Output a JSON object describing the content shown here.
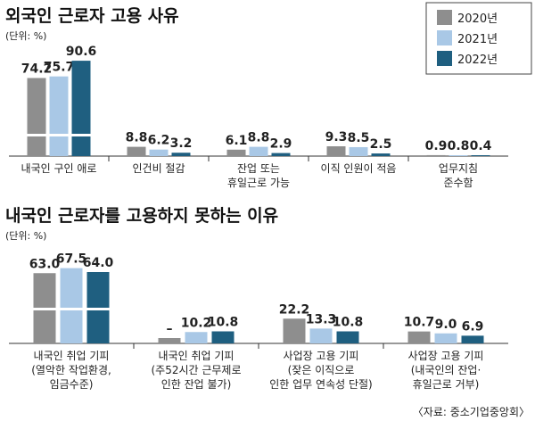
{
  "colors": {
    "2020": "#8e8e8e",
    "2021": "#a9c8e6",
    "2022": "#1f5f80"
  },
  "legend": [
    "2020년",
    "2021년",
    "2022년"
  ],
  "source": "〈자료: 중소기업중앙회〉",
  "chart_data": [
    {
      "type": "bar",
      "title": "외국인 근로자 고용 사유",
      "unit": "(단위: %)",
      "categories": [
        [
          "내국인 구인 애로"
        ],
        [
          "인건비 절감"
        ],
        [
          "잔업 또는",
          "휴일근로 가능"
        ],
        [
          "이직 인원이 적음"
        ],
        [
          "업무지침",
          "준수함"
        ]
      ],
      "series": [
        {
          "name": "2020년",
          "values": [
            74.2,
            8.8,
            6.1,
            9.3,
            0.9
          ]
        },
        {
          "name": "2021년",
          "values": [
            75.7,
            6.2,
            8.8,
            8.5,
            0.8
          ]
        },
        {
          "name": "2022년",
          "values": [
            90.6,
            3.2,
            2.9,
            2.5,
            0.4
          ]
        }
      ]
    },
    {
      "type": "bar",
      "title": "내국인 근로자를 고용하지 못하는 이유",
      "unit": "(단위: %)",
      "categories": [
        [
          "내국인 취업 기피",
          "(열악한 작업환경,",
          "임금수준)"
        ],
        [
          "내국인 취업 기피",
          "(주52시간 근무제로",
          "인한 잔업 불가)"
        ],
        [
          "사업장 고용 기피",
          "(잦은 이직으로",
          "인한 업무 연속성 단절)"
        ],
        [
          "사업장 고용 기피",
          "(내국인의 잔업·",
          "휴일근로 거부)"
        ]
      ],
      "series": [
        {
          "name": "2020년",
          "values": [
            63.0,
            null,
            22.2,
            10.7
          ],
          "labels": [
            "63.0",
            "–",
            "22.2",
            "10.7"
          ]
        },
        {
          "name": "2021년",
          "values": [
            67.5,
            10.2,
            13.3,
            9.0
          ]
        },
        {
          "name": "2022년",
          "values": [
            64.0,
            10.8,
            10.8,
            6.9
          ]
        }
      ]
    }
  ]
}
